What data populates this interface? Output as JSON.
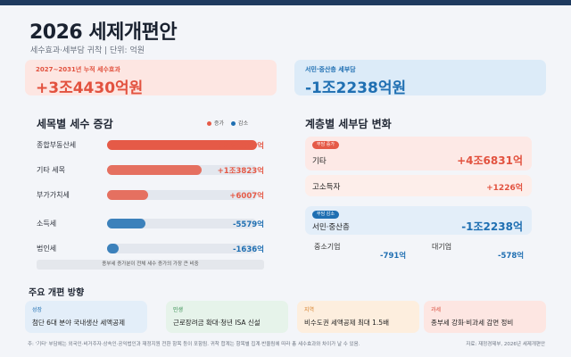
{
  "header": {
    "title": "2026 세제개편안",
    "subtitle": "세수효과·세부담 귀착 | 단위: 억원"
  },
  "summary": {
    "total_label": "2027~2031년 누적 세수효과",
    "total_value": "+3조4430억원",
    "middle_label": "서민·중산층 세부담",
    "middle_value": "-1조2238억원"
  },
  "tax_items": {
    "title": "세목별 세수 증감",
    "legend_increase": "증가",
    "legend_decrease": "감소",
    "increase_color": "#e55a47",
    "decrease_color": "#1f6fb2",
    "note": "종부세 증가분이 전체 세수 증가의 가장 큰 비중"
  },
  "chart_data": {
    "type": "bar",
    "categories": [
      "종합부동산세",
      "기타 세목",
      "부가가치세",
      "소득세",
      "법인세"
    ],
    "values": [
      21815,
      13823,
      6007,
      -5579,
      -1636
    ],
    "value_labels": [
      "+2조1815억",
      "+1조3823억",
      "+6007억",
      "-5579억",
      "-1636억"
    ],
    "xlabel": "",
    "ylabel": ""
  },
  "burden": {
    "title": "계층별 세부담 변화",
    "inc_tag": "부담 증가",
    "other_name": "기타",
    "other_value": "+4조6831억",
    "high_name": "고소득자",
    "high_value": "+1226억",
    "dec_tag": "부담 감소",
    "middle_name": "서민·중산층",
    "middle_value": "-1조2238억",
    "sme_name": "중소기업",
    "sme_value": "-791억",
    "large_name": "대기업",
    "large_value": "-578억"
  },
  "directions": {
    "title": "주요 개편 방향",
    "items": [
      {
        "tag": "성장",
        "text": "첨단 6대 분야 국내생산 세액공제",
        "bg": "#e3eef9",
        "tag_color": "#1f6fb2"
      },
      {
        "tag": "민생",
        "text": "근로장려금 확대·청년 ISA 신설",
        "bg": "#e6f3ea",
        "tag_color": "#2f8a4b"
      },
      {
        "tag": "지역",
        "text": "비수도권 세액공제 최대 1.5배",
        "bg": "#fdeede",
        "tag_color": "#d7812b"
      },
      {
        "tag": "과세",
        "text": "종부세 강화·비과세 감면 정비",
        "bg": "#fde6e2",
        "tag_color": "#d94a3a"
      }
    ]
  },
  "footer": {
    "note": "주: '기타' 부담에는 외국인·비거주자·상속인·공익법인과 재정지원 전환 항목 등이 포함됨. 귀착 합계는 항목별 집계·반올림에 따라 총 세수효과와 차이가 날 수 있음.",
    "source": "자료: 재정경제부, 2026년 세제개편안"
  }
}
